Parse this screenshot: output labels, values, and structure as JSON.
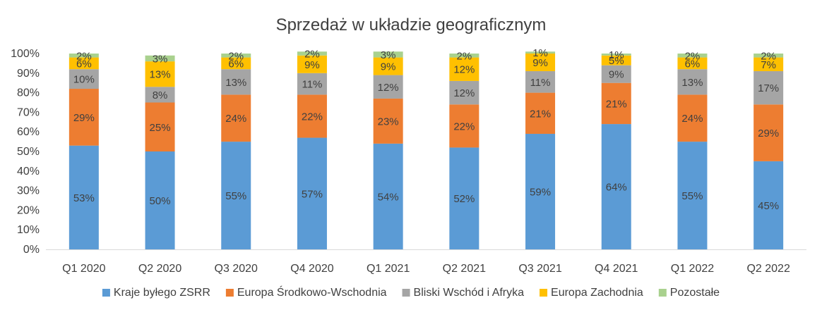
{
  "chart_data": {
    "type": "bar",
    "stacked": true,
    "title": "Sprzedaż w układzie geograficznym",
    "categories": [
      "Q1 2020",
      "Q2 2020",
      "Q3 2020",
      "Q4 2020",
      "Q1 2021",
      "Q2 2021",
      "Q3 2021",
      "Q4 2021",
      "Q1 2022",
      "Q2 2022"
    ],
    "series": [
      {
        "name": "Kraje byłego ZSRR",
        "color": "#5B9BD5",
        "values": [
          53,
          50,
          55,
          57,
          54,
          52,
          59,
          64,
          55,
          45
        ]
      },
      {
        "name": "Europa Środkowo-Wschodnia",
        "color": "#ED7D31",
        "values": [
          29,
          25,
          24,
          22,
          23,
          22,
          21,
          21,
          24,
          29
        ]
      },
      {
        "name": "Bliski Wschód i Afryka",
        "color": "#A5A5A5",
        "values": [
          10,
          8,
          13,
          11,
          12,
          12,
          11,
          9,
          13,
          17
        ]
      },
      {
        "name": "Europa Zachodnia",
        "color": "#FFC000",
        "values": [
          6,
          13,
          6,
          9,
          9,
          12,
          9,
          5,
          6,
          7
        ]
      },
      {
        "name": "Pozostałe",
        "color": "#A9D18E",
        "values": [
          2,
          3,
          2,
          2,
          3,
          2,
          1,
          1,
          2,
          2
        ]
      }
    ],
    "y_ticks": [
      "0%",
      "10%",
      "20%",
      "30%",
      "40%",
      "50%",
      "60%",
      "70%",
      "80%",
      "90%",
      "100%"
    ],
    "ylim": [
      0,
      100
    ],
    "value_suffix": "%",
    "grid": false,
    "legend_position": "bottom"
  }
}
